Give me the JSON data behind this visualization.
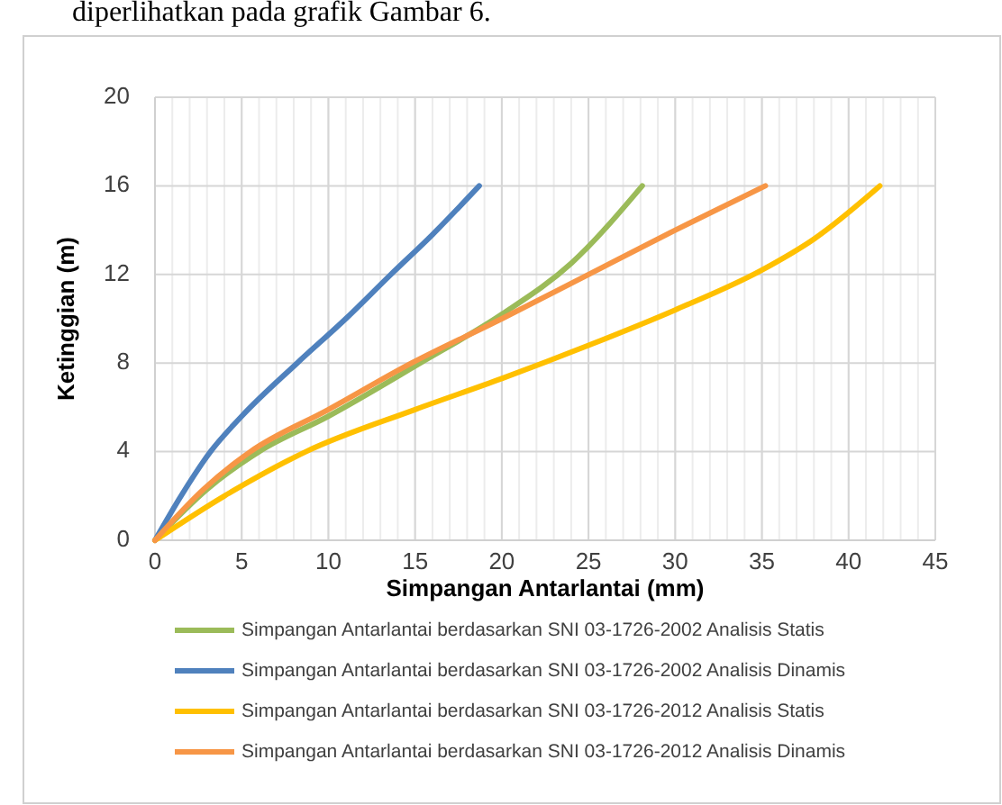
{
  "chart_data": {
    "type": "line",
    "xlabel": "Simpangan Antarlantai (mm)",
    "ylabel": "Ketinggian (m)",
    "annotations": [
      "diperlihatkan pada grafik Gambar 6."
    ],
    "xlim": [
      0,
      45
    ],
    "xticks": [
      0,
      5,
      10,
      15,
      20,
      25,
      30,
      35,
      40,
      45
    ],
    "ylim": [
      0,
      20
    ],
    "yticks": [
      0,
      4,
      8,
      12,
      16,
      20
    ],
    "grid": true,
    "legend": "bottom",
    "marker": "none",
    "line_style": "solid",
    "series": [
      {
        "name": "Simpangan Antarlantai berdasarkan SNI 03-1726-2002 Analisis Statis",
        "color": "#9bbb59",
        "x": [
          0,
          3,
          6,
          10,
          15.3,
          20,
          24,
          28.1
        ],
        "values": [
          0,
          2.3,
          4,
          5.6,
          8,
          10.2,
          12.5,
          16
        ]
      },
      {
        "name": "Simpangan Antarlantai berdasarkan SNI 03-1726-2002 Analisis Dinamis",
        "color": "#4f81bd",
        "x": [
          0,
          1.5,
          3.2,
          5,
          8.2,
          11,
          13.6,
          16,
          18.7
        ],
        "values": [
          0,
          2,
          4,
          5.6,
          8,
          10,
          12,
          13.8,
          16
        ]
      },
      {
        "name": "Simpangan Antarlantai berdasarkan SNI 03-1726-2012 Analisis Statis",
        "color": "#ffc000",
        "x": [
          0,
          4,
          8.7,
          15,
          20,
          25,
          30,
          35,
          38,
          41.8
        ],
        "values": [
          0,
          2,
          4,
          5.9,
          7.3,
          8.8,
          10.4,
          12.2,
          13.6,
          16
        ]
      },
      {
        "name": "Simpangan Antarlantai berdasarkan SNI 03-1726-2012 Analisis Dinamis",
        "color": "#f79646",
        "x": [
          0,
          2.8,
          5.5,
          10,
          14.8,
          20,
          25,
          30,
          35.2
        ],
        "values": [
          0,
          2.3,
          4,
          5.9,
          8,
          10,
          12,
          14,
          16
        ]
      }
    ]
  }
}
